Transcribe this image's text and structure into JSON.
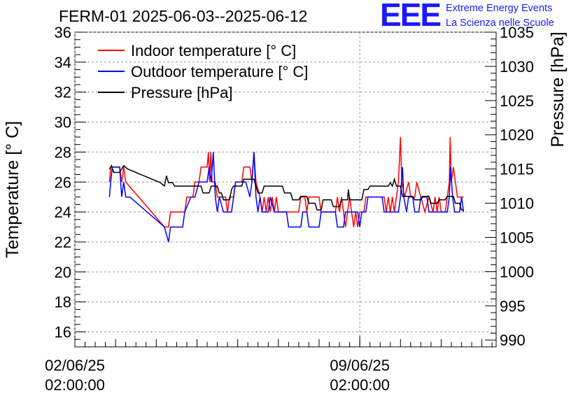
{
  "chart_data": {
    "type": "line",
    "title": "FERM-01 2025-06-03--2025-06-12",
    "ylabel_left": "Temperature [° C]",
    "ylabel_right": "Pressure [hPa]",
    "xlabel": "",
    "x_ticks": [
      {
        "date": "02/06/25",
        "time": "02:00:00",
        "day": 0
      },
      {
        "date": "09/06/25",
        "time": "02:00:00",
        "day": 7
      }
    ],
    "xlim_days": [
      0,
      10.35
    ],
    "ylim_left": [
      15,
      36
    ],
    "ylim_right": [
      989,
      1035
    ],
    "yticks_left": [
      16,
      18,
      20,
      22,
      24,
      26,
      28,
      30,
      32,
      34,
      36
    ],
    "yticks_right": [
      990,
      995,
      1000,
      1005,
      1010,
      1015,
      1020,
      1025,
      1030,
      1035
    ],
    "grid": true,
    "legend_position": "top-left",
    "series": [
      {
        "name": "Indoor temperature [° C]",
        "color": "#ff0000",
        "axis": "left",
        "points": [
          [
            0.85,
            26
          ],
          [
            0.88,
            27
          ],
          [
            1.1,
            27
          ],
          [
            1.15,
            26
          ],
          [
            1.2,
            27
          ],
          [
            1.25,
            26
          ],
          [
            2.2,
            23
          ],
          [
            2.3,
            23
          ],
          [
            2.35,
            24
          ],
          [
            2.7,
            24
          ],
          [
            2.75,
            25
          ],
          [
            2.9,
            25
          ],
          [
            2.95,
            26
          ],
          [
            3.05,
            26
          ],
          [
            3.1,
            27
          ],
          [
            3.25,
            27
          ],
          [
            3.28,
            28
          ],
          [
            3.31,
            26
          ],
          [
            3.34,
            28
          ],
          [
            3.37,
            26
          ],
          [
            3.45,
            26
          ],
          [
            3.5,
            25
          ],
          [
            3.7,
            25
          ],
          [
            3.75,
            24
          ],
          [
            3.8,
            25
          ],
          [
            3.9,
            25
          ],
          [
            3.95,
            26
          ],
          [
            4.1,
            26
          ],
          [
            4.15,
            27
          ],
          [
            4.3,
            27
          ],
          [
            4.35,
            26
          ],
          [
            4.4,
            28
          ],
          [
            4.45,
            26
          ],
          [
            4.55,
            25
          ],
          [
            4.6,
            24
          ],
          [
            4.65,
            25
          ],
          [
            4.7,
            24
          ],
          [
            4.75,
            25
          ],
          [
            4.8,
            24
          ],
          [
            4.85,
            25
          ],
          [
            4.9,
            24
          ],
          [
            4.95,
            25
          ],
          [
            5.0,
            24
          ],
          [
            5.5,
            24
          ],
          [
            5.55,
            25
          ],
          [
            5.65,
            25
          ],
          [
            5.7,
            24
          ],
          [
            5.75,
            25
          ],
          [
            6.0,
            25
          ],
          [
            6.05,
            24
          ],
          [
            6.4,
            24
          ],
          [
            6.45,
            25
          ],
          [
            6.5,
            24
          ],
          [
            6.55,
            25
          ],
          [
            6.6,
            24
          ],
          [
            6.65,
            23
          ],
          [
            6.7,
            24
          ],
          [
            6.75,
            25
          ],
          [
            6.8,
            24
          ],
          [
            6.85,
            23
          ],
          [
            6.9,
            24
          ],
          [
            6.95,
            23
          ],
          [
            7.0,
            24
          ],
          [
            7.1,
            24
          ],
          [
            7.15,
            25
          ],
          [
            7.6,
            25
          ],
          [
            7.65,
            24
          ],
          [
            7.7,
            25
          ],
          [
            7.75,
            24
          ],
          [
            7.8,
            25
          ],
          [
            7.85,
            24
          ],
          [
            7.9,
            25
          ],
          [
            7.95,
            26
          ],
          [
            8.0,
            29
          ],
          [
            8.03,
            26
          ],
          [
            8.1,
            25
          ],
          [
            8.2,
            26
          ],
          [
            8.25,
            25
          ],
          [
            8.35,
            25
          ],
          [
            8.4,
            26
          ],
          [
            8.5,
            25
          ],
          [
            8.6,
            24
          ],
          [
            8.7,
            25
          ],
          [
            8.8,
            24
          ],
          [
            8.85,
            25
          ],
          [
            8.9,
            24
          ],
          [
            8.95,
            25
          ],
          [
            9.0,
            24
          ],
          [
            9.1,
            24
          ],
          [
            9.15,
            25
          ],
          [
            9.2,
            26
          ],
          [
            9.22,
            29
          ],
          [
            9.25,
            26
          ],
          [
            9.3,
            27
          ],
          [
            9.35,
            26
          ],
          [
            9.4,
            25
          ],
          [
            9.55,
            25
          ]
        ]
      },
      {
        "name": "Outdoor temperature [° C]",
        "color": "#0000ff",
        "axis": "left",
        "points": [
          [
            0.85,
            25
          ],
          [
            0.88,
            26
          ],
          [
            0.92,
            27
          ],
          [
            1.1,
            27
          ],
          [
            1.15,
            25
          ],
          [
            1.2,
            26
          ],
          [
            1.25,
            25
          ],
          [
            1.35,
            25
          ],
          [
            2.2,
            23
          ],
          [
            2.3,
            22
          ],
          [
            2.35,
            23
          ],
          [
            2.65,
            23
          ],
          [
            2.7,
            24
          ],
          [
            2.85,
            25
          ],
          [
            2.95,
            25
          ],
          [
            3.05,
            26
          ],
          [
            3.25,
            26
          ],
          [
            3.3,
            27
          ],
          [
            3.35,
            26
          ],
          [
            3.4,
            28
          ],
          [
            3.45,
            25
          ],
          [
            3.5,
            24
          ],
          [
            3.55,
            25
          ],
          [
            3.65,
            24
          ],
          [
            3.85,
            24
          ],
          [
            3.9,
            25
          ],
          [
            3.95,
            26
          ],
          [
            4.2,
            26
          ],
          [
            4.3,
            25
          ],
          [
            4.35,
            26
          ],
          [
            4.4,
            28
          ],
          [
            4.45,
            25
          ],
          [
            4.5,
            24
          ],
          [
            4.55,
            25
          ],
          [
            4.6,
            24
          ],
          [
            4.75,
            24
          ],
          [
            4.8,
            25
          ],
          [
            4.9,
            24
          ],
          [
            5.2,
            24
          ],
          [
            5.25,
            23
          ],
          [
            5.55,
            23
          ],
          [
            5.6,
            24
          ],
          [
            5.7,
            24
          ],
          [
            5.75,
            23
          ],
          [
            6.0,
            23
          ],
          [
            6.05,
            24
          ],
          [
            6.4,
            24
          ],
          [
            6.45,
            23
          ],
          [
            6.6,
            23
          ],
          [
            6.65,
            24
          ],
          [
            6.95,
            24
          ],
          [
            7.0,
            23
          ],
          [
            7.05,
            24
          ],
          [
            7.15,
            24
          ],
          [
            7.2,
            25
          ],
          [
            7.55,
            25
          ],
          [
            7.6,
            24
          ],
          [
            7.95,
            24
          ],
          [
            8.0,
            25
          ],
          [
            8.05,
            27
          ],
          [
            8.08,
            25
          ],
          [
            8.15,
            24
          ],
          [
            8.2,
            25
          ],
          [
            8.3,
            25
          ],
          [
            8.35,
            24
          ],
          [
            8.45,
            24
          ],
          [
            8.5,
            25
          ],
          [
            8.65,
            25
          ],
          [
            8.7,
            24
          ],
          [
            9.15,
            24
          ],
          [
            9.2,
            25
          ],
          [
            9.23,
            27
          ],
          [
            9.28,
            25
          ],
          [
            9.33,
            24
          ],
          [
            9.45,
            24
          ],
          [
            9.5,
            25
          ],
          [
            9.55,
            24
          ]
        ]
      },
      {
        "name": "Pressure [hPa]",
        "color": "#000000",
        "axis": "right",
        "points": [
          [
            0.85,
            1015
          ],
          [
            0.9,
            1015.5
          ],
          [
            0.95,
            1014.5
          ],
          [
            1.1,
            1014.5
          ],
          [
            1.2,
            1015.5
          ],
          [
            1.3,
            1015
          ],
          [
            2.1,
            1013
          ],
          [
            2.2,
            1012.5
          ],
          [
            2.25,
            1014
          ],
          [
            2.3,
            1013
          ],
          [
            2.4,
            1013
          ],
          [
            2.45,
            1012.5
          ],
          [
            3.1,
            1012.5
          ],
          [
            3.15,
            1011.5
          ],
          [
            3.3,
            1011.5
          ],
          [
            3.35,
            1012.5
          ],
          [
            3.5,
            1012.5
          ],
          [
            3.55,
            1011.5
          ],
          [
            3.6,
            1011.5
          ],
          [
            3.65,
            1010.5
          ],
          [
            3.8,
            1010.5
          ],
          [
            3.85,
            1012
          ],
          [
            3.9,
            1012.5
          ],
          [
            4.1,
            1012.5
          ],
          [
            4.15,
            1013.5
          ],
          [
            4.4,
            1013.5
          ],
          [
            4.45,
            1012.5
          ],
          [
            4.5,
            1011.5
          ],
          [
            4.6,
            1011.5
          ],
          [
            4.65,
            1012.5
          ],
          [
            5.1,
            1012.5
          ],
          [
            5.15,
            1011.5
          ],
          [
            5.3,
            1011.5
          ],
          [
            5.35,
            1010.5
          ],
          [
            5.5,
            1010.5
          ],
          [
            5.55,
            1011
          ],
          [
            5.7,
            1011
          ],
          [
            5.75,
            1010
          ],
          [
            5.9,
            1010
          ],
          [
            5.95,
            1009
          ],
          [
            6.05,
            1009
          ],
          [
            6.1,
            1010.5
          ],
          [
            6.3,
            1010.5
          ],
          [
            6.35,
            1009.5
          ],
          [
            6.5,
            1009.5
          ],
          [
            6.55,
            1010.5
          ],
          [
            6.7,
            1010.5
          ],
          [
            6.72,
            1012
          ],
          [
            6.75,
            1010.5
          ],
          [
            7.05,
            1010.5
          ],
          [
            7.1,
            1012
          ],
          [
            7.2,
            1012
          ],
          [
            7.25,
            1012.5
          ],
          [
            7.7,
            1012.5
          ],
          [
            7.75,
            1013
          ],
          [
            7.8,
            1012.5
          ],
          [
            7.85,
            1013.5
          ],
          [
            7.9,
            1012.5
          ],
          [
            8.0,
            1012.5
          ],
          [
            8.05,
            1011
          ],
          [
            8.3,
            1011
          ],
          [
            8.35,
            1010.5
          ],
          [
            8.5,
            1010.5
          ],
          [
            8.55,
            1011
          ],
          [
            8.7,
            1011
          ],
          [
            8.75,
            1010
          ],
          [
            8.9,
            1010
          ],
          [
            8.95,
            1010.5
          ],
          [
            9.1,
            1010.5
          ],
          [
            9.15,
            1011
          ],
          [
            9.3,
            1011
          ],
          [
            9.35,
            1010
          ],
          [
            9.45,
            1010
          ],
          [
            9.5,
            1009
          ],
          [
            9.55,
            1009
          ]
        ]
      }
    ]
  },
  "logo": {
    "mark": "EEE",
    "line1": "Extreme Energy Events",
    "line2": "La Scienza nelle Scuole",
    "color": "#1a1aff"
  }
}
